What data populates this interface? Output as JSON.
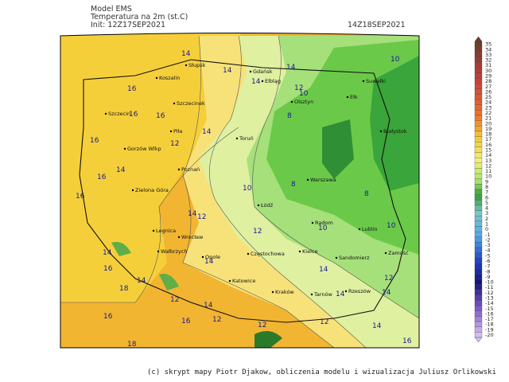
{
  "header": {
    "model": "Model EMS",
    "variable": "Temperatura na 2m (st.C)",
    "init": "Init: 12Z17SEP2021",
    "valid": "14Z18SEP2021"
  },
  "cities": [
    "Słupsk",
    "Koszalin",
    "Gdańsk",
    "Elbląg",
    "Olsztyn",
    "Ełk",
    "Suwałki",
    "Szczecin",
    "Szczecinek",
    "Piła",
    "Białystok",
    "Toruń",
    "Gorzów Wlkp",
    "Poznań",
    "Warszawa",
    "Zielona Góra",
    "Łódź",
    "Radom",
    "Lublin",
    "Legnica",
    "Wrocław",
    "Wałbrzych",
    "Opole",
    "Częstochowa",
    "Kielce",
    "Sandomierz",
    "Zamość",
    "Katowice",
    "Kraków",
    "Tarnów",
    "Rzeszów"
  ],
  "contour_labels": [
    14,
    14,
    14,
    14,
    10,
    12,
    10,
    8,
    16,
    16,
    16,
    16,
    12,
    14,
    14,
    16,
    16,
    8,
    8,
    10,
    14,
    12,
    10,
    10,
    14,
    16,
    18,
    14,
    12,
    14,
    12,
    16,
    18,
    16,
    12,
    14,
    14,
    14,
    12,
    16,
    14,
    12,
    14,
    12
  ],
  "colorbar": {
    "levels": [
      35,
      34,
      33,
      32,
      31,
      30,
      29,
      28,
      27,
      26,
      25,
      24,
      23,
      22,
      21,
      20,
      19,
      18,
      17,
      16,
      15,
      14,
      13,
      12,
      11,
      10,
      9,
      8,
      7,
      6,
      5,
      4,
      3,
      2,
      1,
      0,
      -1,
      -2,
      -3,
      -4,
      -5,
      -6,
      -7,
      -8,
      -9,
      -10,
      -11,
      -12,
      -13,
      -14,
      -15,
      -16,
      -17,
      -18,
      -19,
      -20
    ]
  },
  "credit": "(c) skrypt mapy Piotr Djakow, obliczenia modelu i wizualizacja Juliusz Orlikowski"
}
